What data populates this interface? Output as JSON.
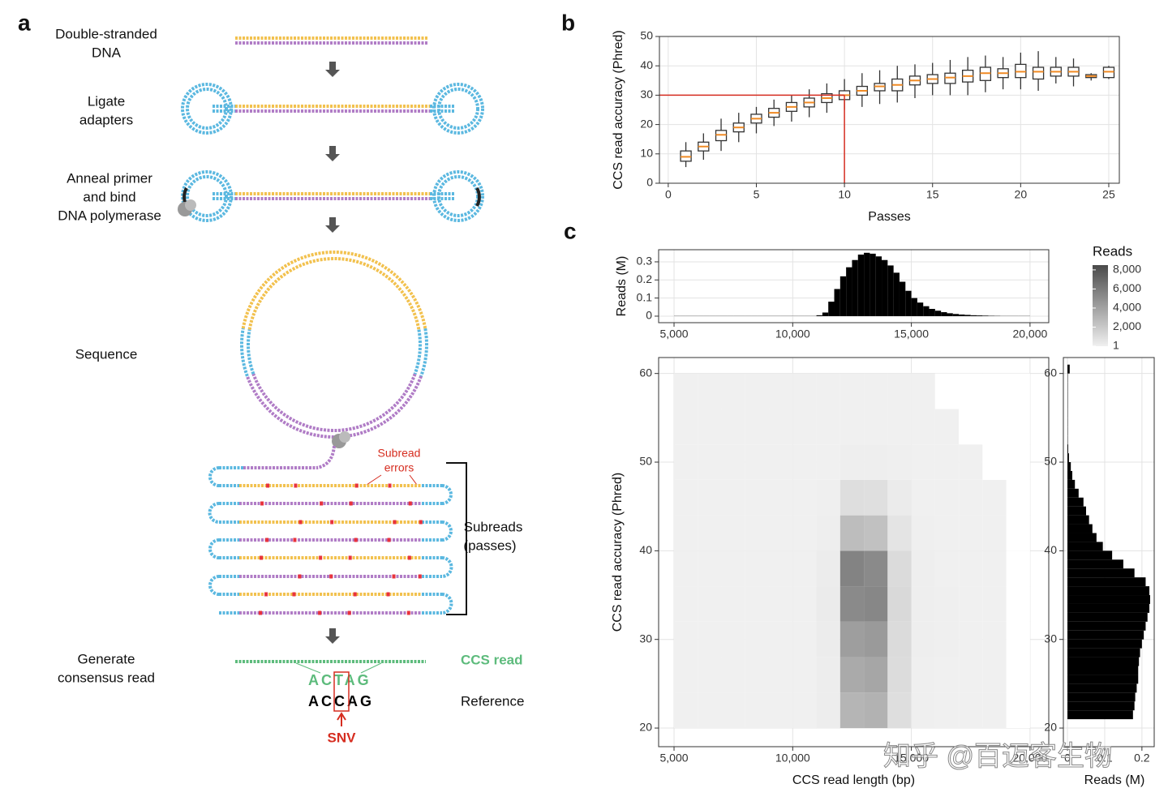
{
  "panel_labels": [
    "a",
    "b",
    "c"
  ],
  "diagram": {
    "steps": [
      [
        "Double-stranded",
        "DNA"
      ],
      [
        "Ligate",
        "adapters"
      ],
      [
        "Anneal primer",
        "and bind",
        "DNA polymerase"
      ],
      [
        "Sequence"
      ],
      [
        "Generate",
        "consensus read"
      ]
    ],
    "subread_errors": [
      "Subread",
      "errors"
    ],
    "subreads": [
      "Subreads",
      "(passes)"
    ],
    "ccs_read": "CCS read",
    "ccs_sequence": "ACTAG",
    "reference": "Reference",
    "reference_sequence": "ACCAG",
    "snv": "SNV"
  },
  "watermark": "知乎 @百迈客生物",
  "chart_data": [
    {
      "type": "box",
      "y_label": "CCS read accuracy (Phred)",
      "x_label": "Passes",
      "x": [
        1,
        2,
        3,
        4,
        5,
        6,
        7,
        8,
        9,
        10,
        11,
        12,
        13,
        14,
        15,
        16,
        17,
        18,
        19,
        20,
        21,
        22,
        23,
        24,
        25
      ],
      "median": [
        9,
        12.5,
        16.5,
        19,
        22,
        24,
        26,
        27.5,
        29,
        30,
        31.5,
        33,
        33.5,
        35,
        35.5,
        36,
        36.5,
        37.5,
        37.5,
        38,
        38,
        38,
        38,
        36.5,
        38
      ],
      "q1": [
        7.5,
        11,
        14.5,
        17.5,
        20.5,
        22.5,
        24.5,
        26,
        27.5,
        28.5,
        30,
        31.5,
        31.5,
        33.5,
        34,
        34,
        34.5,
        35,
        36,
        36,
        35.5,
        36.5,
        36.5,
        36,
        36
      ],
      "q3": [
        11,
        14,
        18,
        20.5,
        23.5,
        25.5,
        27.5,
        29,
        30.5,
        31.5,
        33,
        34,
        35.5,
        36.5,
        37,
        37.5,
        38.5,
        39.5,
        39,
        40.5,
        39.5,
        39.5,
        39.5,
        37,
        39.5
      ],
      "whisker_low": [
        5.5,
        8,
        11,
        14,
        17,
        19.5,
        21,
        22.5,
        24,
        25,
        26,
        27,
        27.5,
        29,
        30,
        30,
        30,
        31,
        32,
        32,
        31.5,
        34,
        33,
        35,
        35.5
      ],
      "whisker_high": [
        14,
        17,
        22,
        24,
        26,
        28.5,
        30,
        32,
        34,
        35.5,
        37.5,
        38.5,
        40,
        40.5,
        41,
        42,
        43,
        43.5,
        43,
        44.5,
        45,
        43,
        42.5,
        37.5,
        40
      ],
      "xlim": [
        -0.5,
        25.6
      ],
      "ylim": [
        0,
        50
      ],
      "xticks": [
        0,
        5,
        10,
        15,
        20,
        25
      ],
      "yticks": [
        0,
        10,
        20,
        30,
        40,
        50
      ],
      "grid": true,
      "box_color": "#ffffff",
      "median_color": "#f08a24",
      "reference_lines": {
        "x": 10,
        "y": 30,
        "color": "#d62d20"
      }
    },
    {
      "type": "histogram",
      "y_label": "Reads (M)",
      "bins": [
        5000,
        5250,
        5500,
        5750,
        6000,
        6250,
        6500,
        6750,
        7000,
        7250,
        7500,
        7750,
        8000,
        8250,
        8500,
        8750,
        9000,
        9250,
        9500,
        9750,
        10000,
        10250,
        10500,
        10750,
        11000,
        11250,
        11500,
        11750,
        12000,
        12250,
        12500,
        12750,
        13000,
        13250,
        13500,
        13750,
        14000,
        14250,
        14500,
        14750,
        15000,
        15250,
        15500,
        15750,
        16000,
        16250,
        16500,
        16750,
        17000,
        17250,
        17500,
        17750,
        18000,
        18250,
        18500,
        18750,
        19000,
        19250,
        19500,
        19750,
        20000
      ],
      "counts": [
        0.001,
        0.001,
        0.001,
        0.001,
        0.001,
        0.001,
        0.001,
        0.001,
        0.001,
        0.001,
        0.001,
        0.001,
        0.001,
        0.001,
        0.001,
        0.001,
        0.001,
        0.001,
        0.001,
        0.001,
        0.001,
        0.001,
        0.001,
        0.001,
        0.005,
        0.02,
        0.08,
        0.15,
        0.22,
        0.27,
        0.31,
        0.34,
        0.35,
        0.345,
        0.33,
        0.31,
        0.28,
        0.24,
        0.19,
        0.14,
        0.1,
        0.075,
        0.055,
        0.04,
        0.03,
        0.022,
        0.016,
        0.012,
        0.009,
        0.007,
        0.005,
        0.004,
        0.003,
        0.002,
        0.0015,
        0.001,
        0.001,
        0.001,
        0.001,
        0.001
      ],
      "xlim": [
        4350,
        20790
      ],
      "ylim": [
        -0.036,
        0.367
      ],
      "xticks": [
        {
          "value": 5000,
          "label": "5,000"
        },
        {
          "value": 10000,
          "label": "10,000"
        },
        {
          "value": 15000,
          "label": "15,000"
        },
        {
          "value": 20000,
          "label": "20,000"
        }
      ],
      "yticks": [
        0,
        0.1,
        0.2,
        0.3
      ],
      "grid": true,
      "color": "#000000"
    },
    {
      "type": "heatmap",
      "x_label": "CCS read length (bp)",
      "y_label": "CCS read accuracy (Phred)",
      "x_bins": [
        5000,
        6000,
        7000,
        8000,
        9000,
        10000,
        11000,
        12000,
        13000,
        14000,
        15000,
        16000,
        17000,
        18000,
        19000,
        20000
      ],
      "y_bins": [
        20,
        24,
        28,
        32,
        36,
        40,
        44,
        48,
        52,
        56,
        60
      ],
      "counts": [
        [
          8,
          10,
          10,
          12,
          12,
          20,
          150,
          3000,
          3200,
          900,
          60,
          20,
          10,
          6,
          0
        ],
        [
          8,
          10,
          12,
          12,
          14,
          22,
          180,
          3600,
          3800,
          1000,
          70,
          25,
          12,
          6,
          0
        ],
        [
          8,
          10,
          12,
          14,
          16,
          25,
          220,
          4200,
          4400,
          1100,
          80,
          28,
          14,
          7,
          0
        ],
        [
          6,
          8,
          10,
          12,
          14,
          22,
          250,
          5200,
          5400,
          1200,
          90,
          30,
          14,
          7,
          0
        ],
        [
          5,
          6,
          8,
          10,
          12,
          18,
          200,
          5600,
          5200,
          1100,
          80,
          25,
          12,
          5,
          0
        ],
        [
          4,
          5,
          6,
          8,
          10,
          14,
          120,
          2600,
          2400,
          600,
          50,
          18,
          8,
          3,
          0
        ],
        [
          3,
          4,
          5,
          6,
          7,
          10,
          60,
          900,
          850,
          250,
          25,
          10,
          5,
          2,
          0
        ],
        [
          2,
          3,
          3,
          4,
          4,
          6,
          20,
          120,
          110,
          40,
          8,
          4,
          2,
          0,
          0
        ],
        [
          1,
          1,
          1,
          1,
          1,
          1,
          2,
          3,
          3,
          2,
          1,
          1,
          0,
          0,
          0
        ],
        [
          1,
          1,
          1,
          1,
          1,
          1,
          1,
          2,
          2,
          1,
          1,
          0,
          0,
          0,
          0
        ]
      ],
      "xlim": [
        4350,
        20790
      ],
      "ylim": [
        17.9,
        61.8
      ],
      "xticks": [
        {
          "value": 5000,
          "label": "5,000"
        },
        {
          "value": 10000,
          "label": "10,000"
        },
        {
          "value": 15000,
          "label": "15,000"
        },
        {
          "value": 20000,
          "label": "20,000"
        }
      ],
      "yticks": [
        20,
        30,
        40,
        50,
        60
      ],
      "grid": true,
      "colorbar": {
        "title": "Reads",
        "limits": [
          1,
          8500
        ],
        "colors": [
          "#f0f0f0",
          "#4a4a4a"
        ],
        "ticks": [
          1,
          {
            "value": 2000,
            "label": "2,000"
          },
          {
            "value": 4000,
            "label": "4,000"
          },
          {
            "value": 6000,
            "label": "6,000"
          },
          {
            "value": 8000,
            "label": "8,000"
          }
        ]
      }
    },
    {
      "type": "histogram",
      "orientation": "horizontal",
      "x_label": "Reads (M)",
      "bins": [
        21,
        22,
        23,
        24,
        25,
        26,
        27,
        28,
        29,
        30,
        31,
        32,
        33,
        34,
        35,
        36,
        37,
        38,
        39,
        40,
        41,
        42,
        43,
        44,
        45,
        46,
        47,
        48,
        49,
        50,
        51,
        52,
        53,
        54,
        55,
        56,
        57,
        58,
        59,
        60,
        61
      ],
      "counts": [
        0.176,
        0.18,
        0.182,
        0.186,
        0.19,
        0.19,
        0.192,
        0.195,
        0.2,
        0.205,
        0.21,
        0.215,
        0.22,
        0.222,
        0.22,
        0.21,
        0.18,
        0.15,
        0.12,
        0.095,
        0.078,
        0.067,
        0.058,
        0.05,
        0.043,
        0.03,
        0.02,
        0.013,
        0.009,
        0.004,
        0.002,
        0.001,
        0.001,
        0.001,
        0.001,
        0.001,
        0.001,
        0.001,
        0.001,
        0.006
      ],
      "xlim": [
        -0.011,
        0.233
      ],
      "ylim": [
        17.9,
        61.8
      ],
      "xticks": [
        0,
        0.1,
        0.2
      ],
      "yticks": [
        20,
        30,
        40,
        50,
        60
      ],
      "grid": true,
      "color": "#000000"
    }
  ]
}
